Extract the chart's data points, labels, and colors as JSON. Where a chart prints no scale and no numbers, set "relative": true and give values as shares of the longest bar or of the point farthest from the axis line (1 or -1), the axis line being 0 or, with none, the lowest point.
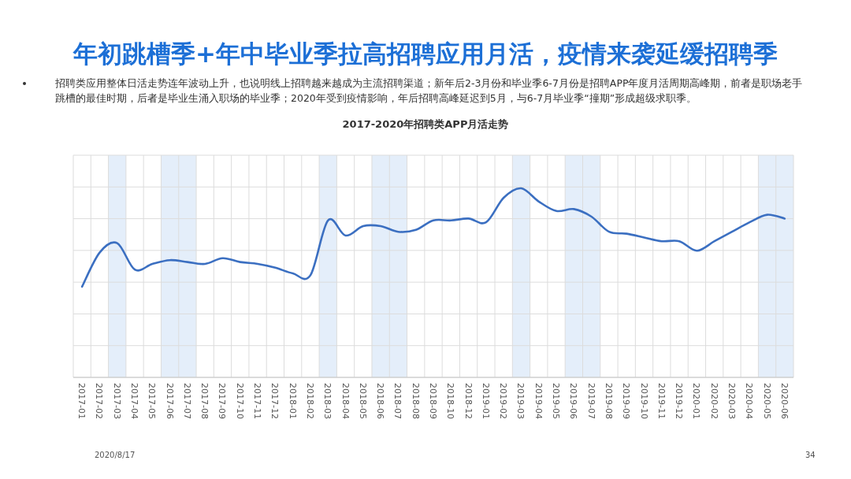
{
  "chart_data": {
    "type": "line",
    "title": "年初跳槽季+年中毕业季拉高招聘应用月活，疫情来袭延缓招聘季",
    "subtitle": "2017-2020年招聘类APP月活走势",
    "categories": [
      "2017-01",
      "2017-02",
      "2017-03",
      "2017-04",
      "2017-05",
      "2017-06",
      "2017-07",
      "2017-08",
      "2017-09",
      "2017-10",
      "2017-11",
      "2017-12",
      "2018-01",
      "2018-02",
      "2018-03",
      "2018-04",
      "2018-05",
      "2018-06",
      "2018-07",
      "2018-08",
      "2018-09",
      "2018-10",
      "2018-12",
      "2019-01",
      "2019-02",
      "2019-03",
      "2019-04",
      "2019-05",
      "2019-06",
      "2019-07",
      "2019-08",
      "2019-09",
      "2019-10",
      "2019-11",
      "2019-12",
      "2020-01",
      "2020-02",
      "2020-03",
      "2020-04",
      "2020-05",
      "2020-06"
    ],
    "relative": true,
    "series": [
      {
        "color": "#3b6fc1",
        "values": [
          0.48,
          0.66,
          0.71,
          0.57,
          0.6,
          0.62,
          0.61,
          0.6,
          0.63,
          0.61,
          0.6,
          0.58,
          0.55,
          0.54,
          0.83,
          0.75,
          0.8,
          0.8,
          0.77,
          0.78,
          0.83,
          0.83,
          0.84,
          0.82,
          0.95,
          1,
          0.93,
          0.88,
          0.89,
          0.85,
          0.77,
          0.76,
          0.74,
          0.72,
          0.72,
          0.67,
          0.72,
          0.77,
          0.82,
          0.86,
          0.84
        ]
      }
    ],
    "bands": [
      {
        "axis": "x",
        "from": "2017-03",
        "to": "2017-03",
        "color": "#e4eefa"
      },
      {
        "axis": "x",
        "from": "2017-06",
        "to": "2017-07",
        "color": "#e4eefa"
      },
      {
        "axis": "x",
        "from": "2018-03",
        "to": "2018-03",
        "color": "#e4eefa"
      },
      {
        "axis": "x",
        "from": "2018-06",
        "to": "2018-07",
        "color": "#e4eefa"
      },
      {
        "axis": "x",
        "from": "2019-03",
        "to": "2019-03",
        "color": "#e4eefa"
      },
      {
        "axis": "x",
        "from": "2019-06",
        "to": "2019-07",
        "color": "#e4eefa"
      },
      {
        "axis": "x",
        "from": "2020-05",
        "to": "2020-06",
        "color": "#e4eefa"
      }
    ],
    "grid": true,
    "annotations": [
      "招聘类应用整体日活走势连年波动上升，也说明线上招聘越来越成为主流招聘渠道；新年后2-3月份和毕业季6-7月份是招聘APP年度月活周期高峰期，前者是职场老手跳槽的最佳时期，后者是毕业生涌入职场的毕业季；2020年受到疫情影响，年后招聘高峰延迟到5月，与6-7月毕业季“撞期”形成超级求职季。",
      "2020/8/17",
      "34"
    ]
  }
}
